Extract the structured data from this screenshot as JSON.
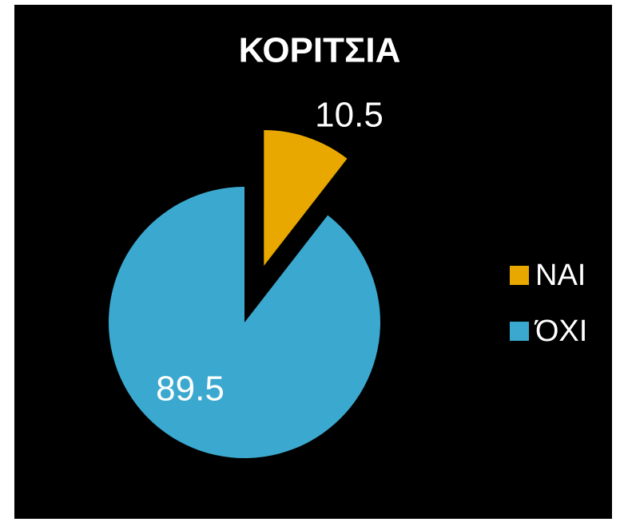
{
  "chart_data": {
    "type": "pie",
    "title": "ΚΟΡΙΤΣΙΑ",
    "categories": [
      "ΝΑΙ",
      "ΌΧΙ"
    ],
    "values": [
      10.5,
      89.5
    ],
    "colors": [
      "#e8a800",
      "#3ba9cf"
    ],
    "legend": "right"
  }
}
